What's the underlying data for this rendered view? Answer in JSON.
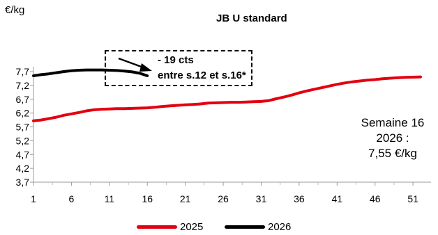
{
  "chart_data": {
    "type": "line",
    "title": "JB U standard",
    "ylabel": "€/kg",
    "xlabel": "",
    "y_ticks": [
      "3,7",
      "4,2",
      "4,7",
      "5,2",
      "5,7",
      "6,2",
      "6,7",
      "7,2",
      "7,7"
    ],
    "y_tick_values": [
      3.7,
      4.2,
      4.7,
      5.2,
      5.7,
      6.2,
      6.7,
      7.2,
      7.7
    ],
    "x_ticks": [
      "1",
      "6",
      "11",
      "16",
      "21",
      "26",
      "31",
      "36",
      "41",
      "46",
      "51"
    ],
    "x_tick_values": [
      1,
      6,
      11,
      16,
      21,
      26,
      31,
      36,
      41,
      46,
      51
    ],
    "xlim": [
      1,
      53
    ],
    "ylim": [
      3.7,
      8.0
    ],
    "grid": false,
    "legend_position": "bottom",
    "series": [
      {
        "name": "2025",
        "color": "#e3000f",
        "x": [
          1,
          2,
          3,
          4,
          5,
          6,
          7,
          8,
          9,
          10,
          11,
          12,
          13,
          14,
          15,
          16,
          17,
          18,
          19,
          20,
          21,
          22,
          23,
          24,
          25,
          26,
          27,
          28,
          29,
          30,
          31,
          32,
          33,
          34,
          35,
          36,
          37,
          38,
          39,
          40,
          41,
          42,
          43,
          44,
          45,
          46,
          47,
          48,
          49,
          50,
          51,
          52
        ],
        "y": [
          5.92,
          5.95,
          6.0,
          6.05,
          6.12,
          6.17,
          6.22,
          6.28,
          6.32,
          6.34,
          6.35,
          6.36,
          6.36,
          6.37,
          6.38,
          6.39,
          6.41,
          6.44,
          6.46,
          6.48,
          6.5,
          6.51,
          6.53,
          6.56,
          6.57,
          6.58,
          6.59,
          6.59,
          6.6,
          6.61,
          6.62,
          6.65,
          6.72,
          6.78,
          6.85,
          6.93,
          7.0,
          7.06,
          7.12,
          7.18,
          7.24,
          7.29,
          7.33,
          7.36,
          7.39,
          7.41,
          7.44,
          7.46,
          7.48,
          7.49,
          7.5,
          7.51
        ]
      },
      {
        "name": "2026",
        "color": "#000000",
        "x": [
          1,
          2,
          3,
          4,
          5,
          6,
          7,
          8,
          9,
          10,
          11,
          12,
          13,
          14,
          15,
          16
        ],
        "y": [
          7.55,
          7.59,
          7.62,
          7.66,
          7.7,
          7.73,
          7.75,
          7.76,
          7.76,
          7.76,
          7.75,
          7.74,
          7.72,
          7.69,
          7.64,
          7.55
        ]
      }
    ],
    "annotations": {
      "callout_line1": "- 19 cts",
      "callout_line2": "entre s.12 et s.16*",
      "note_line1": "Semaine 16",
      "note_line2": "2026 :",
      "note_line3": "7,55 €/kg"
    }
  }
}
